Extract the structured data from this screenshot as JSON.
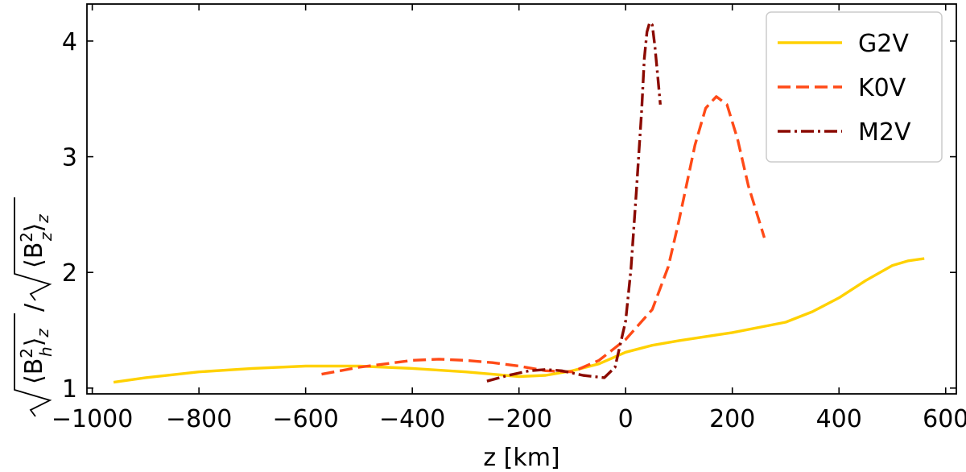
{
  "chart_data": {
    "type": "line",
    "xlabel": "z [km]",
    "ylabel_parts": {
      "num_base": "⟨B",
      "num_sub": "h",
      "den_base": "⟨B",
      "den_sub": "z",
      "sup": "2",
      "angle_close": "⟩",
      "outer_sub": "z",
      "slash": "/"
    },
    "xlim": [
      -1010,
      620
    ],
    "ylim": [
      0.95,
      4.32
    ],
    "x_ticks": [
      -1000,
      -800,
      -600,
      -400,
      -200,
      0,
      200,
      400,
      600
    ],
    "x_tick_labels": [
      "−1000",
      "−800",
      "−600",
      "−400",
      "−200",
      "0",
      "200",
      "400",
      "600"
    ],
    "y_ticks": [
      1,
      2,
      3,
      4
    ],
    "y_tick_labels": [
      "1",
      "2",
      "3",
      "4"
    ],
    "grid": false,
    "legend_position": "top-right",
    "series": [
      {
        "name": "G2V",
        "color": "#FFD100",
        "style": "solid",
        "x": [
          -960,
          -900,
          -800,
          -700,
          -600,
          -500,
          -400,
          -300,
          -250,
          -200,
          -150,
          -100,
          -50,
          0,
          50,
          100,
          200,
          300,
          350,
          400,
          450,
          500,
          530,
          560
        ],
        "y": [
          1.05,
          1.09,
          1.14,
          1.17,
          1.19,
          1.19,
          1.17,
          1.14,
          1.12,
          1.1,
          1.11,
          1.15,
          1.21,
          1.31,
          1.37,
          1.41,
          1.48,
          1.57,
          1.66,
          1.78,
          1.93,
          2.06,
          2.1,
          2.12
        ]
      },
      {
        "name": "K0V",
        "color": "#FF4A17",
        "style": "dashed",
        "x": [
          -570,
          -500,
          -400,
          -350,
          -300,
          -250,
          -200,
          -150,
          -100,
          -50,
          0,
          50,
          80,
          100,
          130,
          150,
          170,
          190,
          210,
          230,
          260
        ],
        "y": [
          1.12,
          1.18,
          1.24,
          1.25,
          1.24,
          1.22,
          1.19,
          1.15,
          1.14,
          1.24,
          1.42,
          1.68,
          2.05,
          2.45,
          3.1,
          3.42,
          3.52,
          3.45,
          3.15,
          2.75,
          2.3
        ]
      },
      {
        "name": "M2V",
        "color": "#8B0A00",
        "style": "dashdot",
        "x": [
          -260,
          -220,
          -180,
          -150,
          -120,
          -100,
          -80,
          -60,
          -40,
          -20,
          0,
          10,
          20,
          30,
          35,
          40,
          45,
          50,
          55,
          60,
          65
        ],
        "y": [
          1.06,
          1.11,
          1.15,
          1.16,
          1.15,
          1.13,
          1.11,
          1.1,
          1.09,
          1.18,
          1.58,
          2.03,
          2.7,
          3.4,
          3.85,
          4.08,
          4.16,
          4.14,
          3.95,
          3.7,
          3.45
        ]
      }
    ]
  }
}
